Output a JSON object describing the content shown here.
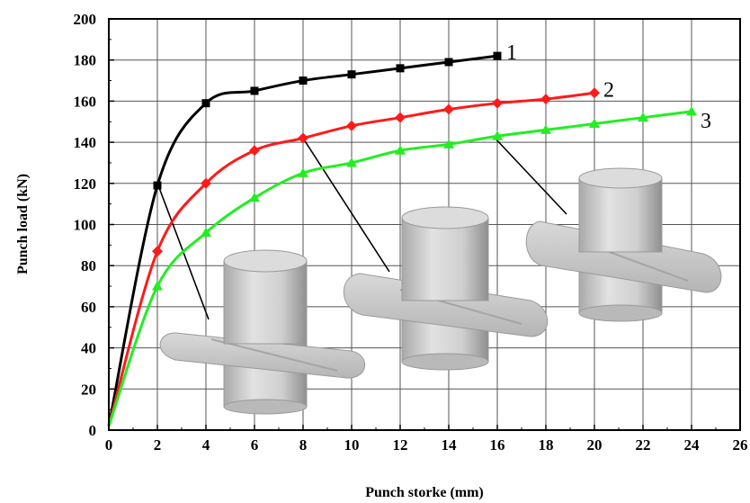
{
  "chart_data": {
    "type": "line",
    "xlabel": "Punch storke (mm)",
    "ylabel": "Punch load (kN)",
    "xlim": [
      0,
      26
    ],
    "ylim": [
      0,
      200
    ],
    "xticks": [
      "0",
      "2",
      "4",
      "6",
      "8",
      "10",
      "12",
      "14",
      "16",
      "18",
      "20",
      "22",
      "24",
      "26"
    ],
    "yticks": [
      "0",
      "20",
      "40",
      "60",
      "80",
      "100",
      "120",
      "140",
      "160",
      "180",
      "200"
    ],
    "grid": true,
    "series": [
      {
        "name": "1",
        "color": "#000000",
        "marker": "square",
        "x": [
          0,
          2,
          4,
          6,
          8,
          10,
          12,
          14,
          16
        ],
        "y": [
          2,
          119,
          159,
          165,
          170,
          173,
          176,
          179,
          182
        ]
      },
      {
        "name": "2",
        "color": "#ff1a1a",
        "marker": "diamond",
        "x": [
          0,
          2,
          4,
          6,
          8,
          10,
          12,
          14,
          16,
          18,
          20
        ],
        "y": [
          2,
          87,
          120,
          136,
          142,
          148,
          152,
          156,
          159,
          161,
          164
        ]
      },
      {
        "name": "3",
        "color": "#22ee22",
        "marker": "triangle",
        "x": [
          0,
          2,
          4,
          6,
          8,
          10,
          12,
          14,
          16,
          18,
          20,
          22,
          24
        ],
        "y": [
          2,
          70,
          96,
          113,
          125,
          130,
          136,
          139,
          143,
          146,
          149,
          152,
          155
        ]
      }
    ],
    "annotations": [
      {
        "type": "part-illustration",
        "points_to_series": "1",
        "at_x": 2,
        "at_y": 119
      },
      {
        "type": "part-illustration",
        "points_to_series": "2",
        "at_x": 8,
        "at_y": 142
      },
      {
        "type": "part-illustration",
        "points_to_series": "3",
        "at_x": 16,
        "at_y": 143
      }
    ]
  }
}
